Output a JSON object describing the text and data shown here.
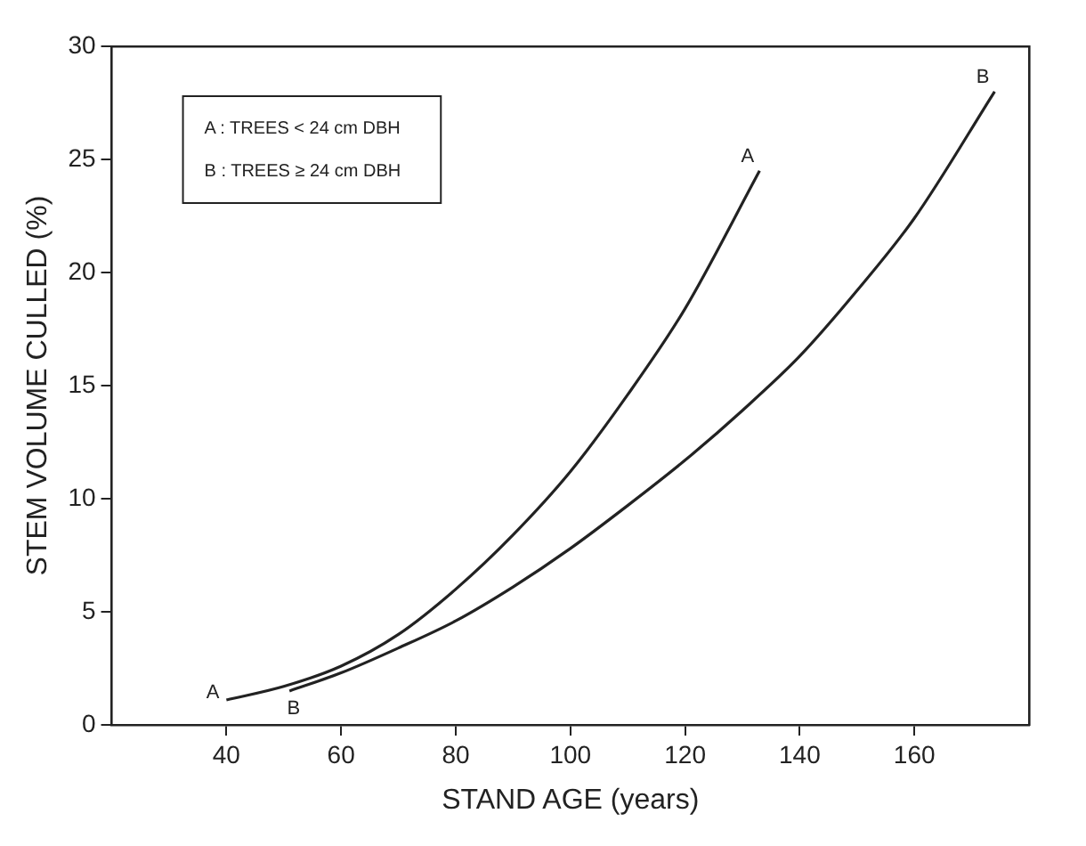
{
  "chart_data": {
    "type": "line",
    "xlabel": "STAND AGE (years)",
    "ylabel": "STEM VOLUME CULLED (%)",
    "xlim": [
      20,
      180
    ],
    "xticks": [
      40,
      60,
      80,
      100,
      120,
      140,
      160
    ],
    "ylim": [
      0,
      30
    ],
    "yticks": [
      0,
      5,
      10,
      15,
      20,
      25,
      30
    ],
    "grid": false,
    "legend": false,
    "marker": "none",
    "line_style": "solid",
    "annotations": [
      "A : TREES < 24 cm DBH",
      "B : TREES ≥ 24 cm DBH"
    ],
    "series": [
      {
        "name": "A",
        "color": "#222222",
        "x": [
          40,
          50,
          60,
          70,
          80,
          90,
          100,
          110,
          120,
          133
        ],
        "values": [
          1.1,
          1.7,
          2.6,
          4.0,
          6.0,
          8.4,
          11.2,
          14.6,
          18.4,
          24.5
        ]
      },
      {
        "name": "B",
        "color": "#222222",
        "x": [
          51,
          60,
          70,
          80,
          90,
          100,
          110,
          120,
          130,
          140,
          150,
          160,
          174
        ],
        "values": [
          1.5,
          2.3,
          3.4,
          4.6,
          6.1,
          7.8,
          9.7,
          11.7,
          13.9,
          16.3,
          19.2,
          22.4,
          28
        ]
      }
    ]
  }
}
